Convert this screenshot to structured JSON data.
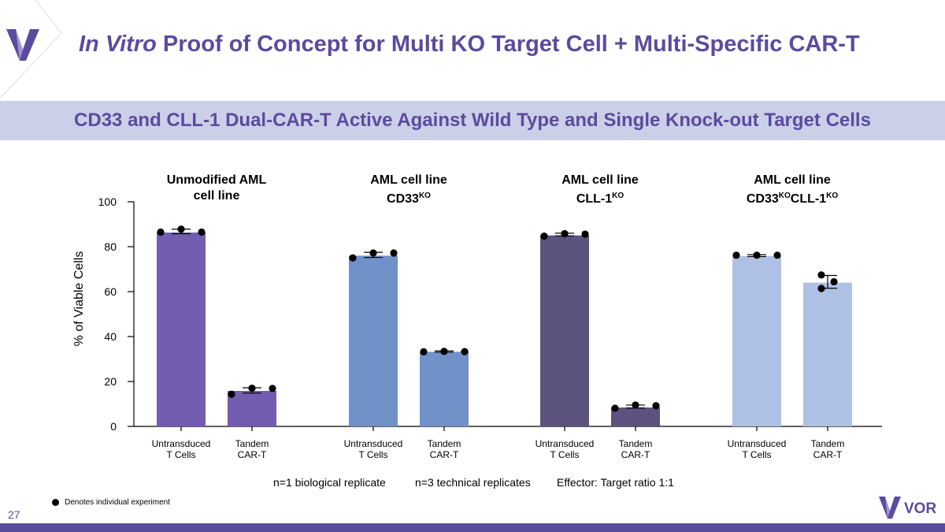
{
  "title": {
    "italic": "In Vitro",
    "rest": " Proof of Concept for Multi KO Target Cell + Multi-Specific CAR-T"
  },
  "subtitle": "CD33 and CLL-1 Dual-CAR-T Active Against Wild Type and Single Knock-out Target Cells",
  "page_number": "27",
  "brand": {
    "name": "VOR",
    "accent": "#5b4b9e",
    "banner_bg": "#cbd0e8"
  },
  "chart_data": {
    "type": "bar",
    "ylabel": "% of Viable Cells",
    "ylim": [
      0,
      100
    ],
    "yticks": [
      "0",
      "20",
      "40",
      "60",
      "80",
      "100"
    ],
    "panels": [
      {
        "title_lines": [
          "Unmodified AML",
          "cell line"
        ],
        "title_html": "Unmodified AML<br>cell line",
        "color": "#735db0",
        "bars": [
          {
            "category": "Untransduced T Cells",
            "value": 86.3,
            "err": [
              85.8,
              87.8
            ],
            "points": [
              86.5,
              87.8,
              86.5
            ]
          },
          {
            "category": "Tandem CAR-T",
            "value": 15.8,
            "err": [
              14.8,
              17.2
            ],
            "points": [
              14.3,
              17.0,
              16.9
            ]
          }
        ]
      },
      {
        "title_lines": [
          "AML cell line",
          "CD33KO"
        ],
        "title_html": "AML cell line<br>CD33<sup>KO</sup>",
        "color": "#7191c9",
        "bars": [
          {
            "category": "Untransduced T Cells",
            "value": 76.0,
            "err": [
              75.2,
              77.5
            ],
            "points": [
              75.0,
              77.2,
              77.2
            ]
          },
          {
            "category": "Tandem CAR-T",
            "value": 33.2,
            "err": [
              33.0,
              33.6
            ],
            "points": [
              33.2,
              33.4,
              33.3
            ]
          }
        ]
      },
      {
        "title_lines": [
          "AML cell line",
          "CLL-1KO"
        ],
        "title_html": "AML cell line<br>CLL-1<sup>KO</sup>",
        "color": "#5b537e",
        "bars": [
          {
            "category": "Untransduced T Cells",
            "value": 85.0,
            "err": [
              84.8,
              86.0
            ],
            "points": [
              84.7,
              85.8,
              85.6
            ]
          },
          {
            "category": "Tandem CAR-T",
            "value": 8.4,
            "err": [
              8.2,
              9.5
            ],
            "points": [
              8.1,
              9.5,
              9.2
            ]
          }
        ]
      },
      {
        "title_lines": [
          "AML cell line",
          "CD33KOCLL-1KO"
        ],
        "title_html": "AML cell line<br>CD33<sup>KO</sup>CLL-1<sup>KO</sup>",
        "color": "#afc0e5",
        "bars": [
          {
            "category": "Untransduced T Cells",
            "value": 75.8,
            "err": [
              75.6,
              76.4
            ],
            "points": [
              76.2,
              76.2,
              76.2
            ]
          },
          {
            "category": "Tandem CAR-T",
            "value": 64.0,
            "err": [
              61.5,
              67.2
            ],
            "points": [
              67.4,
              61.4,
              64.4
            ]
          }
        ]
      }
    ]
  },
  "xtick_labels": {
    "untransduced": [
      "Untransduced",
      "T Cells"
    ],
    "tandem": [
      "Tandem",
      "CAR-T"
    ]
  },
  "notes": {
    "replicates_bio": "n=1 biological replicate",
    "replicates_tech": "n=3 technical replicates",
    "ratio": "Effector: Target ratio 1:1"
  },
  "legend": "Denotes individual experiment"
}
